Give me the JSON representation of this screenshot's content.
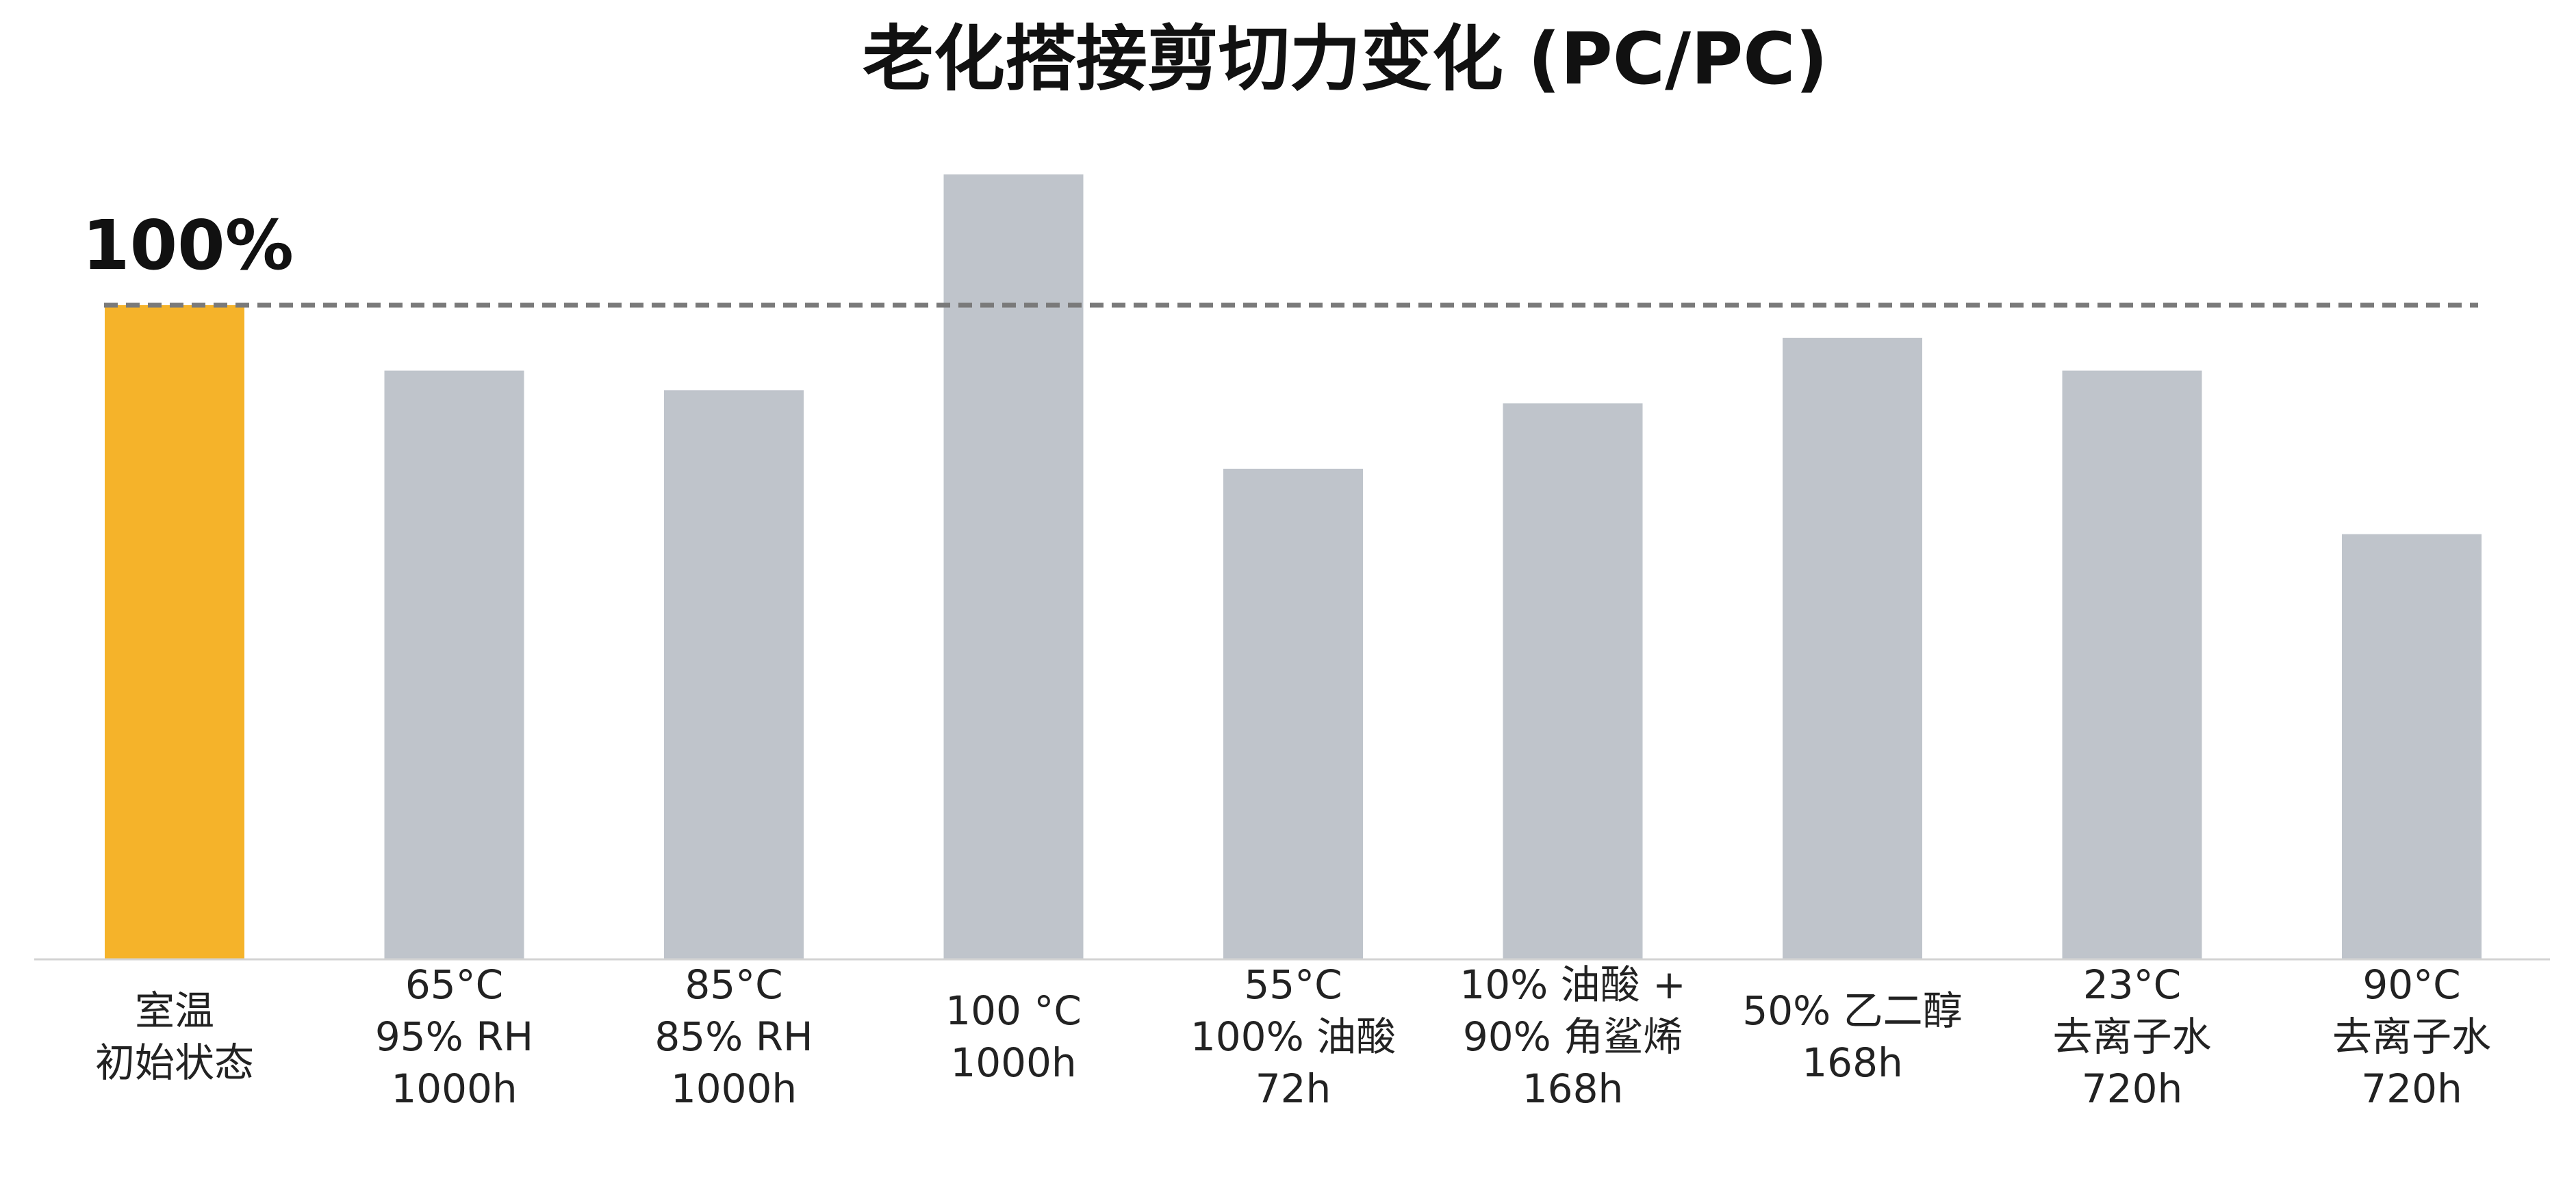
{
  "chart_data": {
    "type": "bar",
    "title": "老化搭接剪切力变化 (PC/PC)",
    "xlabel": "",
    "ylabel": "",
    "ylim": [
      0,
      120
    ],
    "grid": false,
    "legend": "none",
    "reference_line": {
      "value": 100,
      "label": "100%",
      "style": "dashed",
      "color": "#7a7a7a"
    },
    "categories": [
      [
        "室温",
        "初始状态"
      ],
      [
        "65°C",
        "95% RH",
        "1000h"
      ],
      [
        "85°C",
        "85% RH",
        "1000h"
      ],
      [
        "100 °C",
        "1000h"
      ],
      [
        "55°C",
        "100% 油酸",
        "72h"
      ],
      [
        "10% 油酸 +",
        "90% 角鲨烯",
        "168h"
      ],
      [
        "50% 乙二醇",
        "168h"
      ],
      [
        "23°C",
        "去离子水",
        "720h"
      ],
      [
        "90°C",
        "去离子水",
        "720h"
      ]
    ],
    "values": [
      100,
      90,
      87,
      120,
      75,
      85,
      95,
      90,
      65
    ],
    "colors": {
      "baseline": "#f5b32a",
      "bar": "#bfc4cb",
      "axis": "#d3d3d3"
    }
  }
}
